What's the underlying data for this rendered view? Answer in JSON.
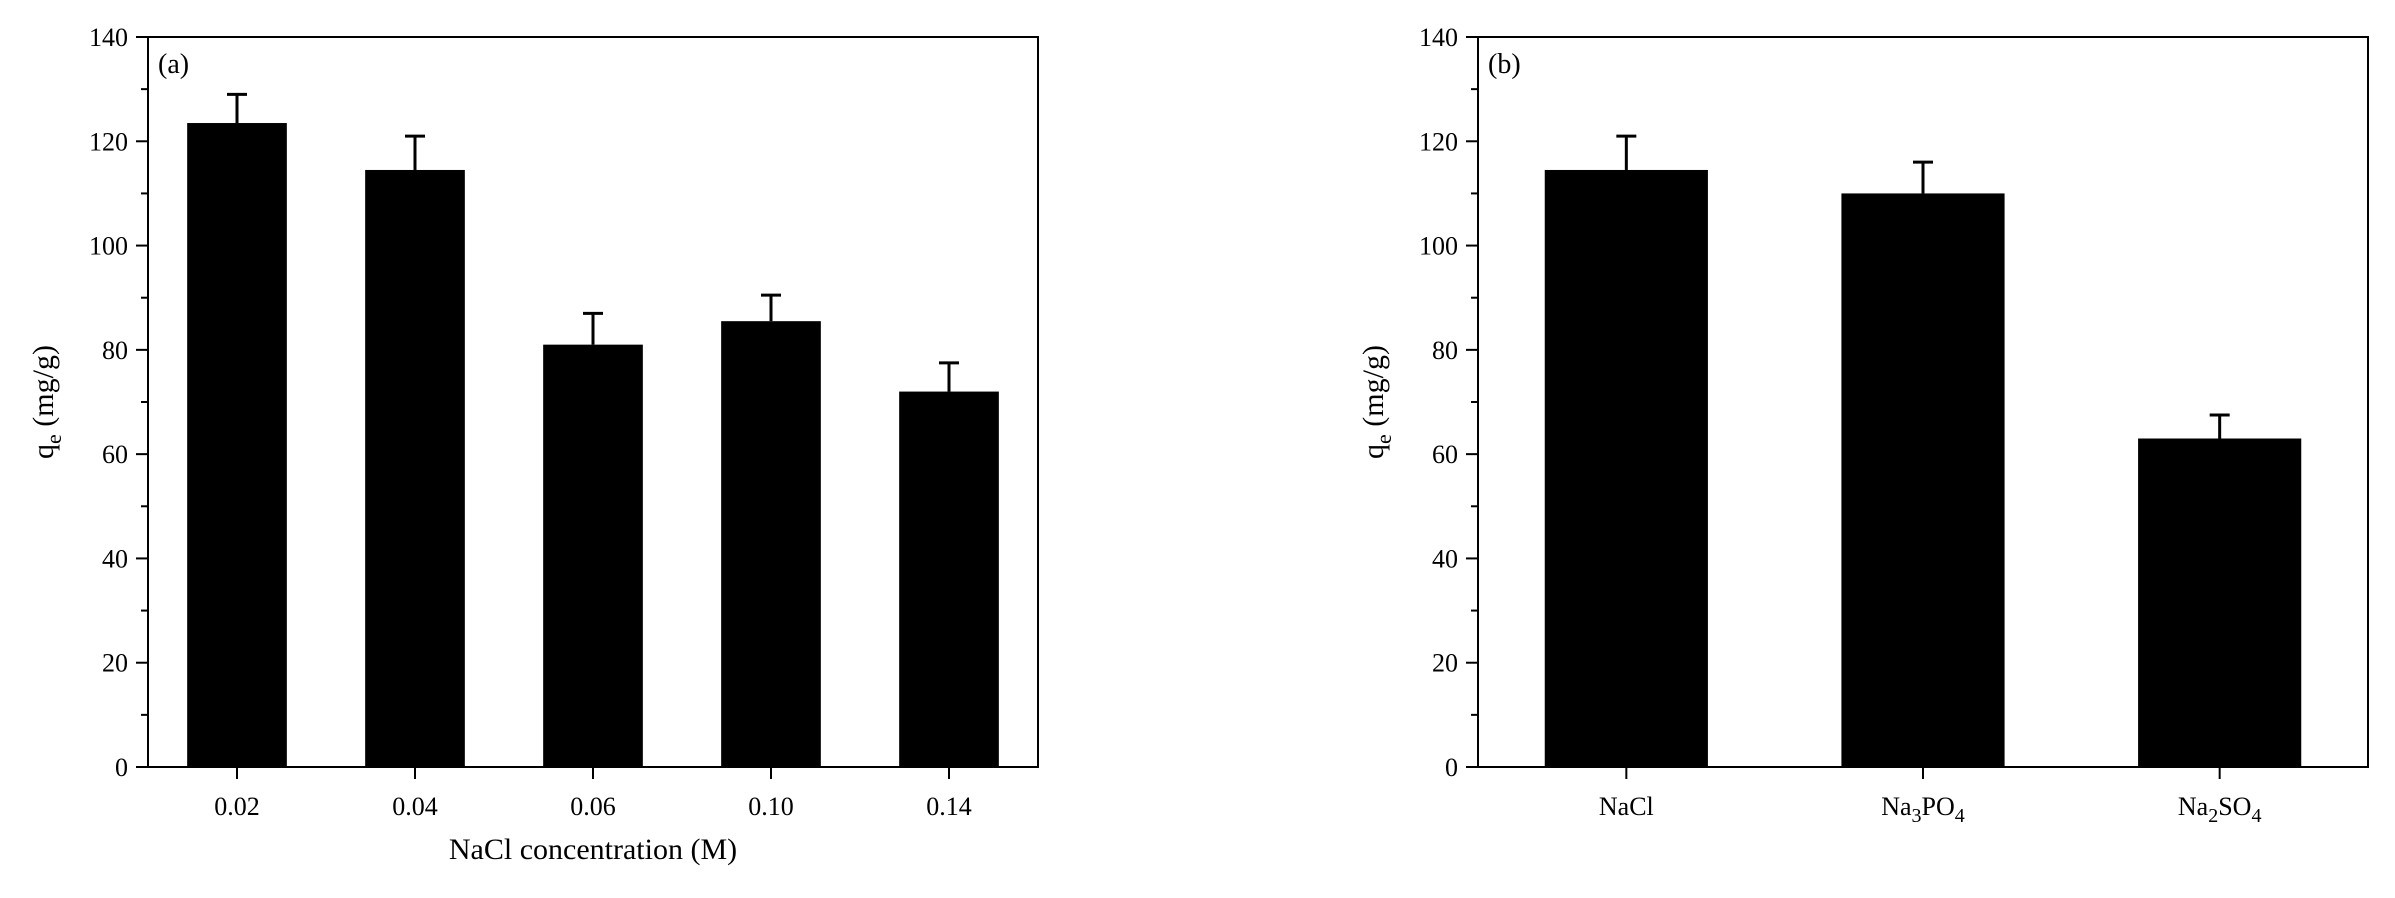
{
  "chart_data": [
    {
      "type": "bar",
      "panel_label": "(a)",
      "categories": [
        "0.02",
        "0.04",
        "0.06",
        "0.10",
        "0.14"
      ],
      "values": [
        123.5,
        114.5,
        81,
        85.5,
        72
      ],
      "errors": [
        5.5,
        6.5,
        6,
        5,
        5.5
      ],
      "xlabel": "NaCl concentration (M)",
      "ylabel_main": "q",
      "ylabel_sub": "e",
      "ylabel_unit": " (mg/g)",
      "ylim": [
        0,
        140
      ],
      "yticks": [
        0,
        20,
        40,
        60,
        80,
        100,
        120,
        140
      ],
      "bar_color": "#000000"
    },
    {
      "type": "bar",
      "panel_label": "(b)",
      "categories": [
        "NaCl",
        "Na3PO4",
        "Na2SO4"
      ],
      "category_parts": [
        [
          {
            "t": "NaCl"
          }
        ],
        [
          {
            "t": "Na"
          },
          {
            "t": "3",
            "sub": true
          },
          {
            "t": "PO"
          },
          {
            "t": "4",
            "sub": true
          }
        ],
        [
          {
            "t": "Na"
          },
          {
            "t": "2",
            "sub": true
          },
          {
            "t": "SO"
          },
          {
            "t": "4",
            "sub": true
          }
        ]
      ],
      "values": [
        114.5,
        110,
        63
      ],
      "errors": [
        6.5,
        6,
        4.5
      ],
      "xlabel": "",
      "ylabel_main": "q",
      "ylabel_sub": "e",
      "ylabel_unit": " (mg/g)",
      "ylim": [
        0,
        140
      ],
      "yticks": [
        0,
        20,
        40,
        60,
        80,
        100,
        120,
        140
      ],
      "bar_color": "#000000"
    }
  ]
}
